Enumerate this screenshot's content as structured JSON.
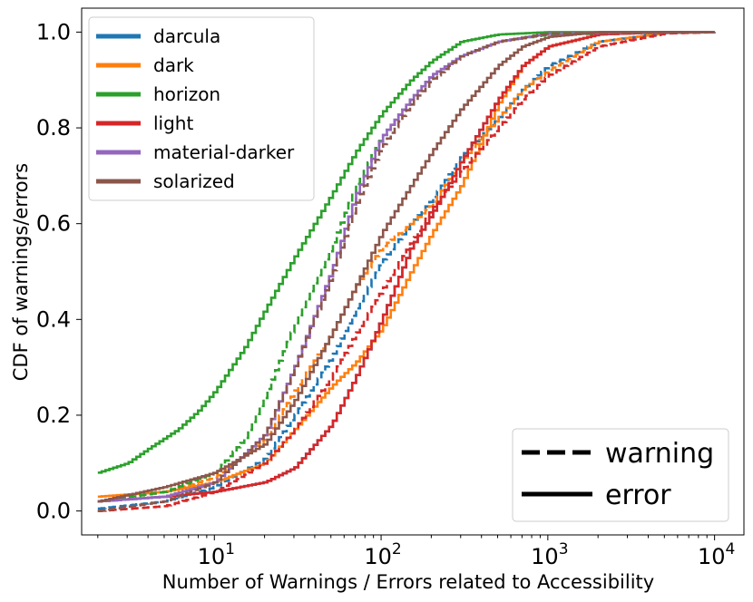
{
  "chart_data": {
    "type": "line",
    "xscale": "log",
    "xlim": [
      1.6,
      15000
    ],
    "ylim": [
      -0.05,
      1.05
    ],
    "xlabel": "Number of Warnings / Errors related to Accessibility",
    "ylabel": "CDF of warnings/errors",
    "x_ticks": [
      {
        "value": 10,
        "base": "10",
        "exp": "1"
      },
      {
        "value": 100,
        "base": "10",
        "exp": "2"
      },
      {
        "value": 1000,
        "base": "10",
        "exp": "3"
      },
      {
        "value": 10000,
        "base": "10",
        "exp": "4"
      }
    ],
    "y_ticks": [
      {
        "value": 0.0,
        "label": "0.0"
      },
      {
        "value": 0.2,
        "label": "0.2"
      },
      {
        "value": 0.4,
        "label": "0.4"
      },
      {
        "value": 0.6,
        "label": "0.6"
      },
      {
        "value": 0.8,
        "label": "0.8"
      },
      {
        "value": 1.0,
        "label": "1.0"
      }
    ],
    "legend_placement": "upper-left",
    "style_legend_placement": "lower-right",
    "style_legend": [
      {
        "label": "warning",
        "dash": "dashed"
      },
      {
        "label": "error",
        "dash": "solid"
      }
    ],
    "series": [
      {
        "name": "darcula",
        "color": "#1f77b4",
        "error": [
          [
            2,
            0.02
          ],
          [
            5,
            0.03
          ],
          [
            10,
            0.04
          ],
          [
            20,
            0.06
          ],
          [
            30,
            0.09
          ],
          [
            50,
            0.18
          ],
          [
            70,
            0.28
          ],
          [
            100,
            0.4
          ],
          [
            150,
            0.55
          ],
          [
            200,
            0.62
          ],
          [
            300,
            0.73
          ],
          [
            500,
            0.86
          ],
          [
            700,
            0.93
          ],
          [
            1000,
            0.97
          ],
          [
            2000,
            0.995
          ],
          [
            5000,
            1.0
          ],
          [
            10000,
            1.0
          ]
        ],
        "warning": [
          [
            2,
            0.005
          ],
          [
            5,
            0.02
          ],
          [
            10,
            0.05
          ],
          [
            20,
            0.11
          ],
          [
            30,
            0.2
          ],
          [
            50,
            0.32
          ],
          [
            70,
            0.42
          ],
          [
            100,
            0.52
          ],
          [
            150,
            0.6
          ],
          [
            200,
            0.65
          ],
          [
            300,
            0.74
          ],
          [
            500,
            0.82
          ],
          [
            700,
            0.88
          ],
          [
            1000,
            0.93
          ],
          [
            2000,
            0.98
          ],
          [
            5000,
            0.998
          ],
          [
            10000,
            1.0
          ]
        ]
      },
      {
        "name": "dark",
        "color": "#ff7f0e",
        "error": [
          [
            2,
            0.03
          ],
          [
            5,
            0.04
          ],
          [
            10,
            0.06
          ],
          [
            20,
            0.1
          ],
          [
            30,
            0.17
          ],
          [
            50,
            0.26
          ],
          [
            70,
            0.31
          ],
          [
            100,
            0.38
          ],
          [
            150,
            0.5
          ],
          [
            200,
            0.58
          ],
          [
            300,
            0.68
          ],
          [
            500,
            0.85
          ],
          [
            700,
            0.93
          ],
          [
            1000,
            0.97
          ],
          [
            2000,
            0.995
          ],
          [
            5000,
            1.0
          ],
          [
            10000,
            1.0
          ]
        ],
        "warning": [
          [
            2,
            0.02
          ],
          [
            5,
            0.04
          ],
          [
            10,
            0.07
          ],
          [
            20,
            0.15
          ],
          [
            30,
            0.25
          ],
          [
            50,
            0.37
          ],
          [
            70,
            0.47
          ],
          [
            100,
            0.55
          ],
          [
            150,
            0.6
          ],
          [
            200,
            0.64
          ],
          [
            300,
            0.73
          ],
          [
            500,
            0.82
          ],
          [
            700,
            0.88
          ],
          [
            1000,
            0.92
          ],
          [
            2000,
            0.98
          ],
          [
            5000,
            0.998
          ],
          [
            10000,
            1.0
          ]
        ]
      },
      {
        "name": "horizon",
        "color": "#2ca02c",
        "error": [
          [
            2,
            0.08
          ],
          [
            3,
            0.1
          ],
          [
            4,
            0.13
          ],
          [
            6,
            0.17
          ],
          [
            8,
            0.21
          ],
          [
            10,
            0.25
          ],
          [
            15,
            0.34
          ],
          [
            20,
            0.42
          ],
          [
            30,
            0.53
          ],
          [
            50,
            0.66
          ],
          [
            70,
            0.75
          ],
          [
            100,
            0.83
          ],
          [
            150,
            0.9
          ],
          [
            200,
            0.94
          ],
          [
            300,
            0.98
          ],
          [
            500,
            0.995
          ],
          [
            1000,
            1.0
          ],
          [
            10000,
            1.0
          ]
        ],
        "warning": [
          [
            2,
            0.02
          ],
          [
            5,
            0.04
          ],
          [
            10,
            0.08
          ],
          [
            15,
            0.15
          ],
          [
            20,
            0.24
          ],
          [
            30,
            0.39
          ],
          [
            50,
            0.55
          ],
          [
            70,
            0.68
          ],
          [
            100,
            0.78
          ],
          [
            150,
            0.86
          ],
          [
            200,
            0.91
          ],
          [
            300,
            0.95
          ],
          [
            500,
            0.98
          ],
          [
            1000,
            0.995
          ],
          [
            10000,
            1.0
          ]
        ]
      },
      {
        "name": "light",
        "color": "#d62728",
        "error": [
          [
            2,
            0.02
          ],
          [
            5,
            0.03
          ],
          [
            10,
            0.04
          ],
          [
            20,
            0.06
          ],
          [
            30,
            0.09
          ],
          [
            50,
            0.18
          ],
          [
            70,
            0.28
          ],
          [
            100,
            0.4
          ],
          [
            150,
            0.55
          ],
          [
            200,
            0.62
          ],
          [
            300,
            0.73
          ],
          [
            500,
            0.86
          ],
          [
            700,
            0.93
          ],
          [
            1000,
            0.97
          ],
          [
            2000,
            0.995
          ],
          [
            5000,
            1.0
          ],
          [
            10000,
            1.0
          ]
        ],
        "warning": [
          [
            2,
            0.0
          ],
          [
            5,
            0.01
          ],
          [
            10,
            0.04
          ],
          [
            20,
            0.1
          ],
          [
            30,
            0.17
          ],
          [
            50,
            0.28
          ],
          [
            70,
            0.37
          ],
          [
            100,
            0.46
          ],
          [
            150,
            0.56
          ],
          [
            200,
            0.63
          ],
          [
            300,
            0.71
          ],
          [
            500,
            0.8
          ],
          [
            700,
            0.86
          ],
          [
            1000,
            0.91
          ],
          [
            2000,
            0.97
          ],
          [
            5000,
            0.997
          ],
          [
            10000,
            1.0
          ]
        ]
      },
      {
        "name": "material-darker",
        "color": "#9467bd",
        "error": [
          [
            2,
            0.02
          ],
          [
            5,
            0.03
          ],
          [
            10,
            0.06
          ],
          [
            20,
            0.16
          ],
          [
            30,
            0.3
          ],
          [
            50,
            0.5
          ],
          [
            70,
            0.66
          ],
          [
            100,
            0.78
          ],
          [
            150,
            0.86
          ],
          [
            200,
            0.91
          ],
          [
            300,
            0.95
          ],
          [
            500,
            0.98
          ],
          [
            1000,
            0.997
          ],
          [
            10000,
            1.0
          ]
        ],
        "warning": [
          [
            2,
            0.02
          ],
          [
            5,
            0.03
          ],
          [
            10,
            0.06
          ],
          [
            20,
            0.16
          ],
          [
            30,
            0.3
          ],
          [
            50,
            0.5
          ],
          [
            70,
            0.66
          ],
          [
            100,
            0.78
          ],
          [
            150,
            0.86
          ],
          [
            200,
            0.91
          ],
          [
            300,
            0.95
          ],
          [
            500,
            0.98
          ],
          [
            1000,
            0.997
          ],
          [
            10000,
            1.0
          ]
        ]
      },
      {
        "name": "solarized",
        "color": "#8c564b",
        "error": [
          [
            2,
            0.02
          ],
          [
            5,
            0.05
          ],
          [
            10,
            0.08
          ],
          [
            20,
            0.14
          ],
          [
            30,
            0.23
          ],
          [
            50,
            0.37
          ],
          [
            70,
            0.47
          ],
          [
            100,
            0.58
          ],
          [
            150,
            0.68
          ],
          [
            200,
            0.75
          ],
          [
            300,
            0.84
          ],
          [
            500,
            0.93
          ],
          [
            700,
            0.97
          ],
          [
            1000,
            0.99
          ],
          [
            2000,
            1.0
          ],
          [
            10000,
            1.0
          ]
        ],
        "warning": [
          [
            2,
            0.0
          ],
          [
            5,
            0.02
          ],
          [
            10,
            0.06
          ],
          [
            20,
            0.16
          ],
          [
            30,
            0.3
          ],
          [
            50,
            0.49
          ],
          [
            70,
            0.64
          ],
          [
            100,
            0.76
          ],
          [
            150,
            0.85
          ],
          [
            200,
            0.9
          ],
          [
            300,
            0.95
          ],
          [
            500,
            0.98
          ],
          [
            1000,
            0.997
          ],
          [
            10000,
            1.0
          ]
        ]
      }
    ]
  }
}
